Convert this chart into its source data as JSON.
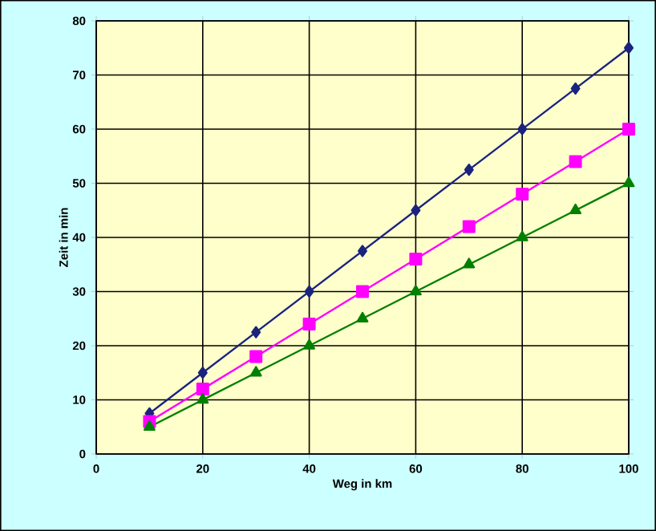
{
  "chart_data": {
    "type": "line",
    "xlabel": "Weg in km",
    "ylabel": "Zeit in min",
    "xlim": [
      0,
      100
    ],
    "ylim": [
      0,
      80
    ],
    "xticks": [
      0,
      20,
      40,
      60,
      80,
      100
    ],
    "yticks": [
      0,
      10,
      20,
      30,
      40,
      50,
      60,
      70,
      80
    ],
    "grid": true,
    "line_style": "solid",
    "x": [
      10,
      20,
      30,
      40,
      50,
      60,
      70,
      80,
      90,
      100
    ],
    "series": [
      {
        "color": "#1a237e",
        "marker": "diamond",
        "values": [
          7.5,
          15,
          22.5,
          30,
          37.5,
          45,
          52.5,
          60,
          67.5,
          75
        ]
      },
      {
        "color": "#ff00ff",
        "marker": "square",
        "values": [
          6,
          12,
          18,
          24,
          30,
          36,
          42,
          48,
          54,
          60
        ]
      },
      {
        "color": "#008000",
        "marker": "triangle",
        "values": [
          5,
          10,
          15,
          20,
          25,
          30,
          35,
          40,
          45,
          50
        ]
      }
    ]
  }
}
